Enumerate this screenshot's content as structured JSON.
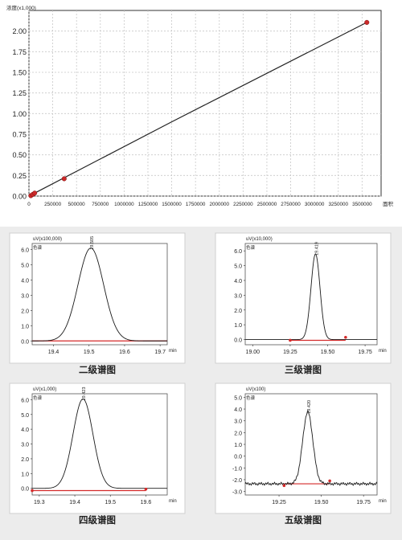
{
  "chart_data": [
    {
      "type": "line",
      "title": "",
      "ylabel": "浓度(x1,000)",
      "xlabel": "面积",
      "xlim": [
        0,
        3700000
      ],
      "ylim": [
        0,
        2.25
      ],
      "grid": true,
      "xticks": [
        0,
        250000,
        500000,
        750000,
        1000000,
        1250000,
        1500000,
        1750000,
        2000000,
        2250000,
        2500000,
        2750000,
        3000000,
        3250000,
        3500000
      ],
      "yticks": [
        0.0,
        0.25,
        0.5,
        0.75,
        1.0,
        1.25,
        1.5,
        1.75,
        2.0
      ],
      "xtick_labels": [
        "0",
        "250000",
        "500000",
        "750000",
        "1000000",
        "1250000",
        "1500000",
        "1750000",
        "2000000",
        "2250000",
        "2500000",
        "2750000",
        "3000000",
        "3250000",
        "3500000"
      ],
      "ytick_labels": [
        "0.00",
        "0.25",
        "0.50",
        "0.75",
        "1.00",
        "1.25",
        "1.50",
        "1.75",
        "2.00"
      ],
      "series": [
        {
          "x": [
            0,
            60000,
            1500000,
            3550000
          ],
          "y": [
            0,
            0.036,
            0.9,
            2.105
          ]
        }
      ],
      "points": {
        "x": [
          20000,
          40000,
          60000,
          370000,
          3550000
        ],
        "y": [
          0.005,
          0.02,
          0.036,
          0.21,
          2.105
        ]
      },
      "line_color": "#222222",
      "point_color": "#cc2a2a"
    },
    {
      "type": "line",
      "caption": "二级谱图",
      "ylabel": "uV(x100,000)",
      "channel": "色谱",
      "xlabel": "min",
      "xlim": [
        19.34,
        19.72
      ],
      "ylim": [
        -0.25,
        6.4
      ],
      "xticks": [
        19.4,
        19.5,
        19.6,
        19.7
      ],
      "yticks": [
        0.0,
        1.0,
        2.0,
        3.0,
        4.0,
        5.0,
        6.0
      ],
      "xtick_labels": [
        "19.4",
        "19.5",
        "19.6",
        "19.7"
      ],
      "ytick_labels": [
        "0.0",
        "1.0",
        "2.0",
        "3.0",
        "4.0",
        "5.0",
        "6.0"
      ],
      "peak": {
        "center": 19.505,
        "height": 6.1,
        "sigma": 0.036
      },
      "peak_label": "19.505",
      "baseline": {
        "x1": 19.34,
        "x2": 19.72,
        "y": 0.0
      }
    },
    {
      "type": "line",
      "caption": "三级谱图",
      "ylabel": "uV(x10,000)",
      "channel": "色谱",
      "xlabel": "min",
      "xlim": [
        18.95,
        19.83
      ],
      "ylim": [
        -0.35,
        6.5
      ],
      "xticks": [
        19.0,
        19.25,
        19.5,
        19.75
      ],
      "yticks": [
        0.0,
        1.0,
        2.0,
        3.0,
        4.0,
        5.0,
        6.0
      ],
      "xtick_labels": [
        "19.00",
        "19.25",
        "19.50",
        "19.75"
      ],
      "ytick_labels": [
        "0.0",
        "1.0",
        "2.0",
        "3.0",
        "4.0",
        "5.0",
        "6.0"
      ],
      "peak": {
        "center": 19.419,
        "height": 5.8,
        "sigma": 0.03
      },
      "peak_label": "19.419",
      "baseline": {
        "x1": 19.25,
        "x2": 19.62,
        "y": -0.05
      },
      "markers": [
        [
          19.25,
          -0.05
        ],
        [
          19.62,
          0.15
        ]
      ]
    },
    {
      "type": "line",
      "caption": "四级谱图",
      "ylabel": "uV(x1,000)",
      "channel": "色谱",
      "xlabel": "min",
      "xlim": [
        19.28,
        19.66
      ],
      "ylim": [
        -0.45,
        6.4
      ],
      "xticks": [
        19.3,
        19.4,
        19.5,
        19.6
      ],
      "yticks": [
        0.0,
        1.0,
        2.0,
        3.0,
        4.0,
        5.0,
        6.0
      ],
      "xtick_labels": [
        "19.3",
        "19.4",
        "19.5",
        "19.6"
      ],
      "ytick_labels": [
        "0.0",
        "1.0",
        "2.0",
        "3.0",
        "4.0",
        "5.0",
        "6.0"
      ],
      "peak": {
        "center": 19.423,
        "height": 6.05,
        "sigma": 0.028
      },
      "peak_label": "19.423",
      "baseline": {
        "x1": 19.28,
        "x2": 19.6,
        "y": -0.15
      },
      "markers": [
        [
          19.28,
          -0.15
        ],
        [
          19.6,
          -0.05
        ]
      ]
    },
    {
      "type": "line",
      "caption": "五级谱图",
      "ylabel": "uV(x100)",
      "channel": "色谱",
      "xlabel": "min",
      "xlim": [
        19.05,
        19.83
      ],
      "ylim": [
        -3.3,
        5.3
      ],
      "xticks": [
        19.25,
        19.5,
        19.75
      ],
      "yticks": [
        -3.0,
        -2.0,
        -1.0,
        0.0,
        1.0,
        2.0,
        3.0,
        4.0,
        5.0
      ],
      "xtick_labels": [
        "19.25",
        "19.50",
        "19.75"
      ],
      "ytick_labels": [
        "-3.0",
        "-2.0",
        "-1.0",
        "0.0",
        "1.0",
        "2.0",
        "3.0",
        "4.0",
        "5.0"
      ],
      "peak": {
        "center": 19.42,
        "height": 6.1,
        "sigma": 0.03
      },
      "peak_label": "19.420",
      "baseline": {
        "x1": 19.28,
        "x2": 19.55,
        "y": -2.35
      },
      "baseline_level": -2.35,
      "markers": [
        [
          19.28,
          -2.5
        ],
        [
          19.55,
          -2.1
        ]
      ]
    }
  ]
}
